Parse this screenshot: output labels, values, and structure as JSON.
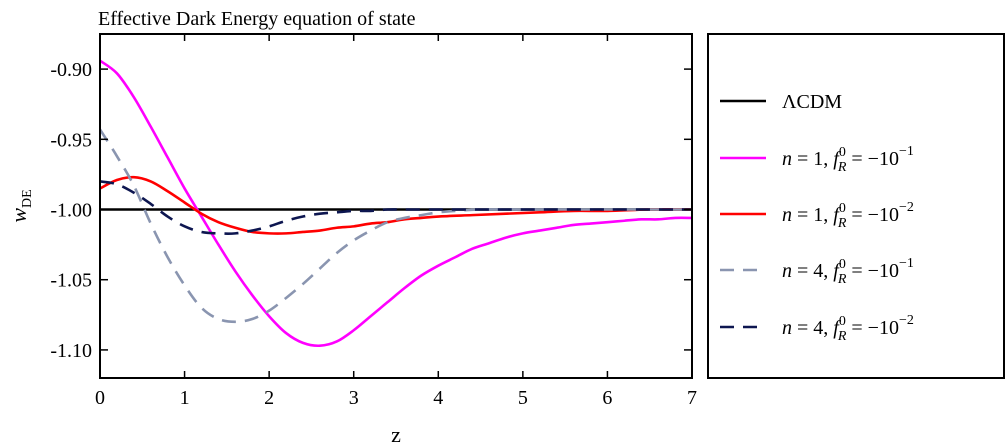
{
  "chart_data": {
    "type": "line",
    "title": "Effective Dark Energy equation of state",
    "xlabel": "z",
    "ylabel": "w_DE",
    "ylabel_main": "w",
    "ylabel_sub": "DE",
    "xlim": [
      0,
      7
    ],
    "ylim": [
      -1.12,
      -0.875
    ],
    "xticks": [
      0,
      1,
      2,
      3,
      4,
      5,
      6,
      7
    ],
    "xtick_labels": [
      "0",
      "1",
      "2",
      "3",
      "4",
      "5",
      "6",
      "7"
    ],
    "yticks": [
      -0.9,
      -0.95,
      -1.0,
      -1.05,
      -1.1
    ],
    "ytick_labels": [
      "-0.90",
      "-0.95",
      "-1.00",
      "-1.05",
      "-1.10"
    ],
    "grid": false,
    "legend_position": "outside-right",
    "series": [
      {
        "name": "ΛCDM",
        "legend": {
          "main": "ΛCDM"
        },
        "color": "#000000",
        "dash": "solid",
        "x": [
          0,
          7
        ],
        "y": [
          -1.0,
          -1.0
        ]
      },
      {
        "name": "n = 1, f_R^0 = −10^−1",
        "legend": {
          "n": "1",
          "exp": "−1"
        },
        "color": "#ff00ff",
        "dash": "solid",
        "x": [
          0,
          0.2,
          0.4,
          0.6,
          0.8,
          1.0,
          1.2,
          1.4,
          1.6,
          1.8,
          2.0,
          2.2,
          2.4,
          2.6,
          2.8,
          3.0,
          3.2,
          3.4,
          3.6,
          3.8,
          4.0,
          4.2,
          4.4,
          4.6,
          4.8,
          5.0,
          5.2,
          5.4,
          5.6,
          5.8,
          6.0,
          6.2,
          6.4,
          6.6,
          6.8,
          7.0
        ],
        "y": [
          -0.894,
          -0.903,
          -0.92,
          -0.941,
          -0.963,
          -0.985,
          -1.005,
          -1.025,
          -1.044,
          -1.061,
          -1.076,
          -1.088,
          -1.095,
          -1.097,
          -1.094,
          -1.086,
          -1.076,
          -1.066,
          -1.056,
          -1.047,
          -1.04,
          -1.034,
          -1.028,
          -1.024,
          -1.02,
          -1.017,
          -1.015,
          -1.013,
          -1.011,
          -1.01,
          -1.009,
          -1.008,
          -1.007,
          -1.007,
          -1.006,
          -1.006
        ]
      },
      {
        "name": "n = 1, f_R^0 = −10^−2",
        "legend": {
          "n": "1",
          "exp": "−2"
        },
        "color": "#ff0000",
        "dash": "solid",
        "x": [
          0,
          0.2,
          0.4,
          0.6,
          0.8,
          1.0,
          1.2,
          1.4,
          1.6,
          1.8,
          2.0,
          2.2,
          2.4,
          2.6,
          2.8,
          3.0,
          3.2,
          3.4,
          3.6,
          3.8,
          4.0,
          4.4,
          4.8,
          5.2,
          5.6,
          6.0,
          6.5,
          7.0
        ],
        "y": [
          -0.985,
          -0.979,
          -0.977,
          -0.98,
          -0.987,
          -0.995,
          -1.003,
          -1.009,
          -1.013,
          -1.016,
          -1.017,
          -1.017,
          -1.016,
          -1.015,
          -1.013,
          -1.012,
          -1.01,
          -1.009,
          -1.007,
          -1.006,
          -1.005,
          -1.004,
          -1.003,
          -1.002,
          -1.001,
          -1.001,
          -1.0,
          -1.0
        ]
      },
      {
        "name": "n = 4, f_R^0 = −10^−1",
        "legend": {
          "n": "4",
          "exp": "−1"
        },
        "color": "#8a95b0",
        "dash": "dashed",
        "x": [
          0,
          0.2,
          0.4,
          0.6,
          0.8,
          1.0,
          1.2,
          1.4,
          1.6,
          1.8,
          2.0,
          2.2,
          2.4,
          2.6,
          2.8,
          3.0,
          3.2,
          3.4,
          3.6,
          3.8,
          4.0,
          4.2,
          4.5,
          5.0,
          5.5,
          6.0,
          7.0
        ],
        "y": [
          -0.943,
          -0.962,
          -0.983,
          -1.01,
          -1.034,
          -1.054,
          -1.07,
          -1.078,
          -1.08,
          -1.078,
          -1.072,
          -1.063,
          -1.053,
          -1.042,
          -1.031,
          -1.022,
          -1.015,
          -1.009,
          -1.006,
          -1.004,
          -1.002,
          -1.001,
          -1.0,
          -1.0,
          -1.0,
          -1.0,
          -1.0
        ]
      },
      {
        "name": "n = 4, f_R^0 = −10^−2",
        "legend": {
          "n": "4",
          "exp": "−2"
        },
        "color": "#0d1650",
        "dash": "dashed",
        "x": [
          0,
          0.2,
          0.4,
          0.6,
          0.8,
          1.0,
          1.2,
          1.4,
          1.6,
          1.8,
          2.0,
          2.2,
          2.4,
          2.6,
          2.8,
          3.0,
          3.2,
          3.4,
          3.6,
          4.0,
          4.5,
          5.0,
          6.0,
          7.0
        ],
        "y": [
          -0.98,
          -0.982,
          -0.988,
          -0.996,
          -1.005,
          -1.012,
          -1.016,
          -1.017,
          -1.017,
          -1.015,
          -1.012,
          -1.008,
          -1.005,
          -1.003,
          -1.002,
          -1.001,
          -1.001,
          -1.0,
          -1.0,
          -1.0,
          -1.0,
          -1.0,
          -1.0,
          -1.0
        ]
      }
    ]
  }
}
